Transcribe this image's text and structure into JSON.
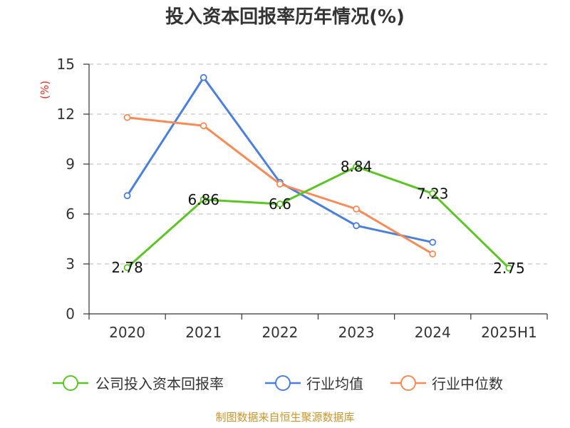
{
  "chart_data": {
    "type": "line",
    "title": "投入资本回报率历年情况(%)",
    "ylabel": "(%)",
    "xlabel": "",
    "categories": [
      "2020",
      "2021",
      "2022",
      "2023",
      "2024",
      "2025H1"
    ],
    "ylim": [
      0,
      15
    ],
    "yticks": [
      0,
      3,
      6,
      9,
      12,
      15
    ],
    "grid": true,
    "legend_position": "bottom",
    "series": [
      {
        "name": "公司投入资本回报率",
        "color": "#5cc424",
        "values": [
          2.78,
          6.86,
          6.6,
          8.84,
          7.23,
          2.75
        ],
        "labels": [
          "2.78",
          "6.86",
          "6.6",
          "8.84",
          "7.23",
          "2.75"
        ]
      },
      {
        "name": "行业均值",
        "color": "#4a7fdc",
        "values": [
          7.1,
          14.2,
          7.9,
          5.3,
          4.3,
          null
        ]
      },
      {
        "name": "行业中位数",
        "color": "#f78b57",
        "values": [
          11.8,
          11.3,
          7.8,
          6.3,
          3.6,
          null
        ]
      }
    ]
  },
  "footer": {
    "source": "制图数据来自恒生聚源数据库"
  }
}
